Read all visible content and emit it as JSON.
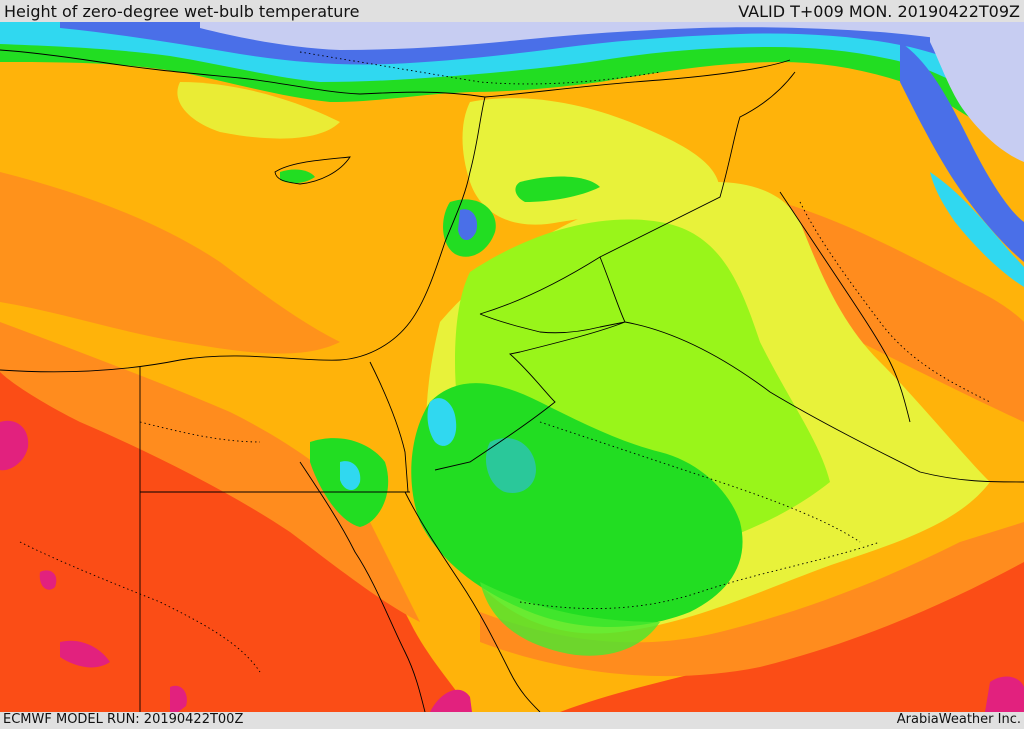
{
  "header": {
    "title": "Height of zero-degree wet-bulb temperature",
    "valid": "VALID T+009 MON. 20190422T09Z"
  },
  "footer": {
    "model_run": "ECMWF MODEL RUN: 20190422T00Z",
    "credit": "ArabiaWeather Inc."
  },
  "palette": {
    "lavender": "#c7cdf2",
    "blue": "#4a6fe8",
    "cyan": "#30d8f0",
    "teal": "#2ac89a",
    "green": "#22dd22",
    "bright_green": "#48e830",
    "lime": "#99f51a",
    "yellow": "#e8f23a",
    "amber": "#ffb30a",
    "orange": "#ff8c1e",
    "red_orange": "#fb4d16",
    "magenta": "#e2217e",
    "border": "#000000"
  }
}
